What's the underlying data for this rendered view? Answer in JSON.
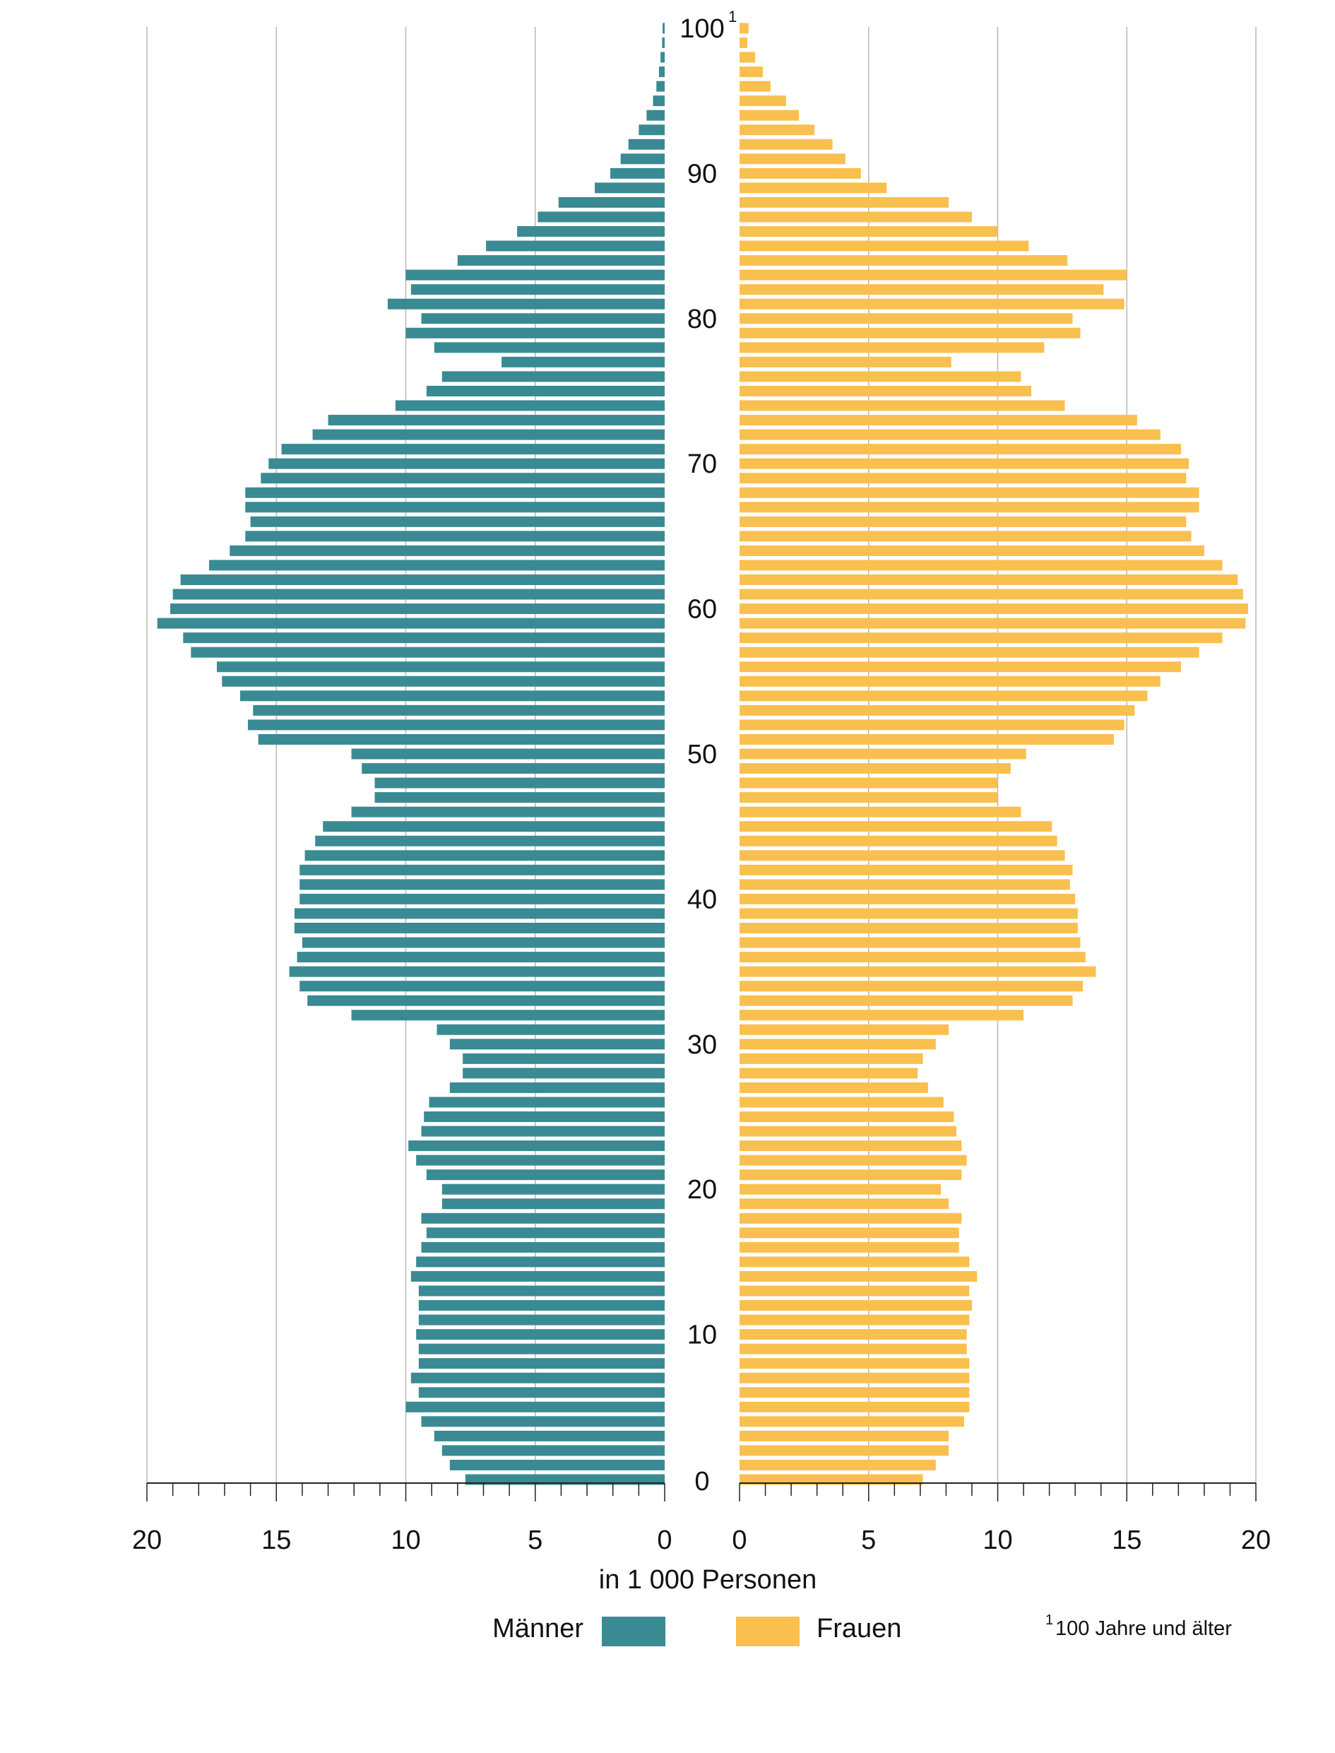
{
  "chart_data": {
    "type": "bar",
    "orientation": "horizontal",
    "subtype": "population-pyramid",
    "xlabel": "in 1 000 Personen",
    "x_ticks": [
      "20",
      "15",
      "10",
      "5",
      "0"
    ],
    "x_ticks_right": [
      "0",
      "5",
      "10",
      "15",
      "20"
    ],
    "xlim": [
      0,
      20
    ],
    "grid": "vertical",
    "legend_position": "bottom",
    "age_tick_labels": [
      "0",
      "10",
      "20",
      "30",
      "40",
      "50",
      "60",
      "70",
      "80",
      "90",
      "100"
    ],
    "top_age_superscript": "1",
    "footnote": {
      "marker": "1",
      "text": "100 Jahre und älter"
    },
    "categories": [
      0,
      1,
      2,
      3,
      4,
      5,
      6,
      7,
      8,
      9,
      10,
      11,
      12,
      13,
      14,
      15,
      16,
      17,
      18,
      19,
      20,
      21,
      22,
      23,
      24,
      25,
      26,
      27,
      28,
      29,
      30,
      31,
      32,
      33,
      34,
      35,
      36,
      37,
      38,
      39,
      40,
      41,
      42,
      43,
      44,
      45,
      46,
      47,
      48,
      49,
      50,
      51,
      52,
      53,
      54,
      55,
      56,
      57,
      58,
      59,
      60,
      61,
      62,
      63,
      64,
      65,
      66,
      67,
      68,
      69,
      70,
      71,
      72,
      73,
      74,
      75,
      76,
      77,
      78,
      79,
      80,
      81,
      82,
      83,
      84,
      85,
      86,
      87,
      88,
      89,
      90,
      91,
      92,
      93,
      94,
      95,
      96,
      97,
      98,
      99,
      100
    ],
    "series": [
      {
        "name": "Männer",
        "color": "#3a8a93",
        "side": "left",
        "values": [
          7.7,
          8.3,
          8.6,
          8.9,
          9.4,
          10.0,
          9.5,
          9.8,
          9.5,
          9.5,
          9.6,
          9.5,
          9.5,
          9.5,
          9.8,
          9.6,
          9.4,
          9.2,
          9.4,
          8.6,
          8.6,
          9.2,
          9.6,
          9.9,
          9.4,
          9.3,
          9.1,
          8.3,
          7.8,
          7.8,
          8.3,
          8.8,
          12.1,
          13.8,
          14.1,
          14.5,
          14.2,
          14.0,
          14.3,
          14.3,
          14.1,
          14.1,
          14.1,
          13.9,
          13.5,
          13.2,
          12.1,
          11.2,
          11.2,
          11.7,
          12.1,
          15.7,
          16.1,
          15.9,
          16.4,
          17.1,
          17.3,
          18.3,
          18.6,
          19.6,
          19.1,
          19.0,
          18.7,
          17.6,
          16.8,
          16.2,
          16.0,
          16.2,
          16.2,
          15.6,
          15.3,
          14.8,
          13.6,
          13.0,
          10.4,
          9.2,
          8.6,
          6.3,
          8.9,
          10.0,
          9.4,
          10.7,
          9.8,
          10.0,
          8.0,
          6.9,
          5.7,
          4.9,
          4.1,
          2.7,
          2.1,
          1.7,
          1.4,
          1.0,
          0.7,
          0.45,
          0.32,
          0.22,
          0.16,
          0.1,
          0.08
        ]
      },
      {
        "name": "Frauen",
        "color": "#f9c04f",
        "side": "right",
        "values": [
          7.1,
          7.6,
          8.1,
          8.1,
          8.7,
          8.9,
          8.9,
          8.9,
          8.9,
          8.8,
          8.8,
          8.9,
          9.0,
          8.9,
          9.2,
          8.9,
          8.5,
          8.5,
          8.6,
          8.1,
          7.8,
          8.6,
          8.8,
          8.6,
          8.4,
          8.3,
          7.9,
          7.3,
          6.9,
          7.1,
          7.6,
          8.1,
          11.0,
          12.9,
          13.3,
          13.8,
          13.4,
          13.2,
          13.1,
          13.1,
          13.0,
          12.8,
          12.9,
          12.6,
          12.3,
          12.1,
          10.9,
          10.0,
          10.0,
          10.5,
          11.1,
          14.5,
          14.9,
          15.3,
          15.8,
          16.3,
          17.1,
          17.8,
          18.7,
          19.6,
          19.7,
          19.5,
          19.3,
          18.7,
          18.0,
          17.5,
          17.3,
          17.8,
          17.8,
          17.3,
          17.4,
          17.1,
          16.3,
          15.4,
          12.6,
          11.3,
          10.9,
          8.2,
          11.8,
          13.2,
          12.9,
          14.9,
          14.1,
          15.0,
          12.7,
          11.2,
          10.0,
          9.0,
          8.1,
          5.7,
          4.7,
          4.1,
          3.6,
          2.9,
          2.3,
          1.8,
          1.2,
          0.9,
          0.6,
          0.3,
          0.35
        ]
      }
    ]
  },
  "legend": [
    {
      "label": "Männer",
      "color": "#3a8a93"
    },
    {
      "label": "Frauen",
      "color": "#f9c04f"
    }
  ]
}
